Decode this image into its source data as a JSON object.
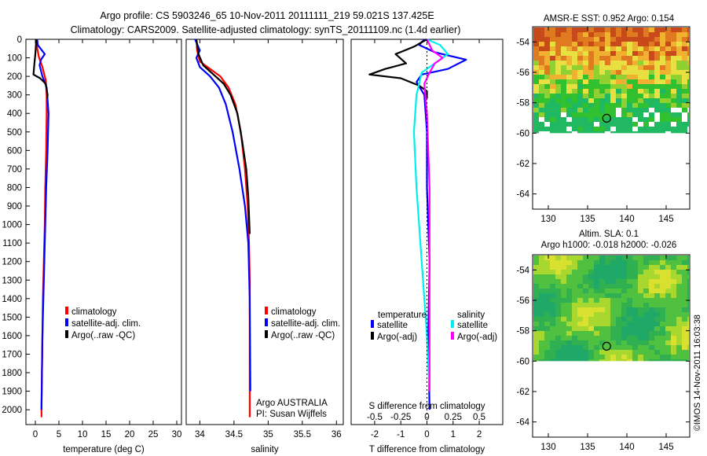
{
  "header": {
    "line1": "Argo profile: CS 5903246_65 10-Nov-2011 20111111_219 59.021S 137.425E",
    "line2": "Climatology: CARS2009. Satellite-adjusted climatology: synTS_20111109.nc (1.4d earlier)"
  },
  "colors": {
    "climatology": "#ff0000",
    "satellite": "#0000ff",
    "argo": "#000000",
    "argo_salinity": "#ff00ff",
    "satellite_salinity": "#00eeee"
  },
  "chart_data": [
    {
      "type": "line",
      "id": "temperature",
      "xlabel": "temperature (deg C)",
      "ylabel": "",
      "xlim": [
        -2,
        31
      ],
      "ylim": [
        2080,
        0
      ],
      "xticks": [
        0,
        5,
        10,
        15,
        20,
        25,
        30
      ],
      "yticks": [
        0,
        100,
        200,
        300,
        400,
        500,
        600,
        700,
        800,
        900,
        1000,
        1100,
        1200,
        1300,
        1400,
        1500,
        1600,
        1700,
        1800,
        1900,
        2000
      ],
      "legend": [
        "climatology",
        "satellite-adj. clim.",
        "Argo(..raw -QC)"
      ],
      "series": [
        {
          "name": "climatology",
          "color": "#ff0000",
          "x": [
            0.2,
            0.4,
            0.8,
            1.5,
            2.2,
            2.4,
            2.4,
            2.3,
            2.1,
            2.0,
            1.8,
            1.6,
            1.5,
            1.4,
            1.3,
            1.3
          ],
          "y": [
            0,
            50,
            100,
            150,
            220,
            300,
            400,
            600,
            800,
            1000,
            1200,
            1400,
            1600,
            1800,
            2000,
            2040
          ]
        },
        {
          "name": "satellite-adj. clim.",
          "color": "#0000ff",
          "x": [
            0.4,
            0.5,
            2.0,
            1.2,
            0.9,
            1.5,
            2.4,
            2.8,
            2.6,
            2.3,
            2.1,
            1.9,
            1.7,
            1.5,
            1.4,
            1.3
          ],
          "y": [
            0,
            30,
            80,
            110,
            140,
            200,
            260,
            400,
            600,
            800,
            1000,
            1200,
            1400,
            1600,
            1800,
            2000
          ]
        },
        {
          "name": "Argo(..raw -QC)",
          "color": "#000000",
          "x": [
            0.2,
            0.0,
            -0.2,
            -0.3,
            -0.4,
            1.0,
            2.2,
            2.6,
            2.5
          ],
          "y": [
            0,
            80,
            130,
            160,
            190,
            210,
            240,
            300,
            320
          ]
        }
      ],
      "annotations": []
    },
    {
      "type": "line",
      "id": "salinity",
      "xlabel": "salinity",
      "ylabel": "",
      "xlim": [
        33.8,
        36.1
      ],
      "ylim": [
        2080,
        0
      ],
      "xticks": [
        34,
        34.5,
        35,
        35.5,
        36
      ],
      "legend": [
        "climatology",
        "satellite-adj. clim.",
        "Argo(..raw -QC)"
      ],
      "series": [
        {
          "name": "climatology",
          "color": "#ff0000",
          "x": [
            33.95,
            33.96,
            34.0,
            34.15,
            34.3,
            34.42,
            34.52,
            34.6,
            34.66,
            34.7,
            34.72,
            34.73,
            34.73,
            34.73,
            34.73
          ],
          "y": [
            0,
            60,
            120,
            160,
            200,
            260,
            350,
            500,
            700,
            900,
            1100,
            1300,
            1500,
            1800,
            2040
          ]
        },
        {
          "name": "satellite-adj. clim.",
          "color": "#0000ff",
          "x": [
            33.93,
            34.0,
            33.95,
            34.0,
            34.15,
            34.28,
            34.38,
            34.48,
            34.58,
            34.66,
            34.71,
            34.73,
            34.74
          ],
          "y": [
            0,
            60,
            100,
            150,
            200,
            260,
            350,
            500,
            700,
            900,
            1100,
            1400,
            1900
          ]
        },
        {
          "name": "Argo(..raw -QC)",
          "color": "#000000",
          "x": [
            33.95,
            33.98,
            34.05,
            34.2,
            34.35,
            34.45,
            34.55,
            34.62,
            34.68,
            34.71,
            34.72,
            34.73
          ],
          "y": [
            0,
            80,
            140,
            190,
            240,
            300,
            400,
            550,
            700,
            850,
            950,
            1050
          ]
        }
      ],
      "annotations": [
        "Argo AUSTRALIA",
        "PI: Susan Wijffels"
      ]
    },
    {
      "type": "line",
      "id": "difference",
      "xlabel": "T difference from climatology",
      "xlabel_top": "S difference from climatology",
      "xlim": [
        -2.9,
        2.9
      ],
      "ylim": [
        2080,
        0
      ],
      "xticks": [
        -2,
        -1,
        0,
        1,
        2
      ],
      "xticks_top": [
        "-0.5",
        "-0.25",
        "0",
        "0.25",
        "0.5"
      ],
      "xticks_top_pos": [
        -2,
        -1,
        0,
        1,
        2
      ],
      "legend_headers": [
        "temperature",
        "salinity"
      ],
      "legend": [
        "satellite",
        "Argo(-adj)",
        "satellite",
        "Argo(-adj)"
      ],
      "series": [
        {
          "name": "satellite",
          "color": "#0000ff",
          "x": [
            -0.1,
            -0.3,
            0.3,
            1.5,
            0.8,
            -0.2,
            -0.4,
            -0.1,
            0.0,
            0.0,
            0.1,
            0.05,
            0.1
          ],
          "y": [
            0,
            30,
            70,
            110,
            160,
            190,
            230,
            300,
            500,
            800,
            1200,
            1600,
            2000
          ]
        },
        {
          "name": "Argo(-adj)",
          "color": "#000000",
          "x": [
            0.0,
            -0.5,
            -1.2,
            -0.8,
            -1.6,
            -2.2,
            -1.0,
            -0.3,
            0.0,
            0.0
          ],
          "y": [
            0,
            40,
            80,
            130,
            160,
            190,
            210,
            250,
            280,
            320
          ]
        },
        {
          "name": "satellite",
          "color": "#00eeee",
          "x": [
            0.0,
            0.5,
            0.8,
            0.4,
            -0.2,
            -0.4,
            -0.5,
            -0.4,
            -0.2,
            0.0,
            0.1
          ],
          "y": [
            0,
            30,
            80,
            120,
            180,
            300,
            500,
            800,
            1200,
            1600,
            1900
          ]
        },
        {
          "name": "Argo(-adj)",
          "color": "#ff00ff",
          "x": [
            0.0,
            0.2,
            0.6,
            0.3,
            0.1,
            -0.1,
            0.0,
            0.1,
            0.1,
            0.1
          ],
          "y": [
            0,
            60,
            100,
            130,
            180,
            240,
            400,
            800,
            1200,
            1900
          ]
        }
      ],
      "annotations": []
    },
    {
      "type": "heatmap",
      "id": "sst_map",
      "title": "AMSR-E SST: 0.952 Argo: 0.154",
      "xlim": [
        128,
        148
      ],
      "ylim": [
        -65,
        -53
      ],
      "xticks": [
        130,
        135,
        140,
        145
      ],
      "yticks": [
        -54,
        -56,
        -58,
        -60,
        -62,
        -64
      ],
      "marker": {
        "lon": 137.425,
        "lat": -59.021
      }
    },
    {
      "type": "heatmap",
      "id": "sla_map",
      "title": "Altim. SLA: 0.1",
      "subtitle": "Argo h1000: -0.018 h2000: -0.026",
      "xlim": [
        128,
        148
      ],
      "ylim": [
        -65,
        -53
      ],
      "xticks": [
        130,
        135,
        140,
        145
      ],
      "yticks": [
        -54,
        -56,
        -58,
        -60,
        -62,
        -64
      ],
      "marker": {
        "lon": 137.425,
        "lat": -59.021
      }
    }
  ],
  "footer": {
    "credit": "©IMOS 14-Nov-2011 16:03:38"
  }
}
